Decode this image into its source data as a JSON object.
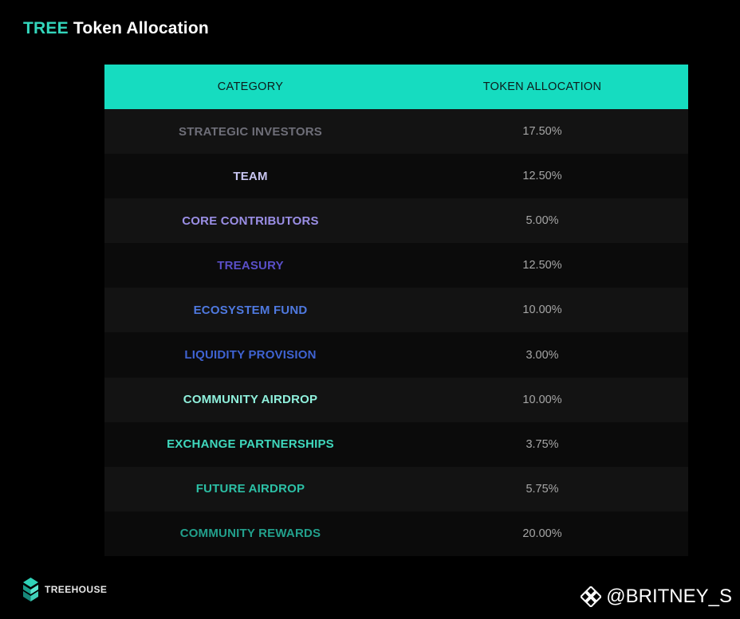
{
  "header": {
    "title_accent": "TREE",
    "title_rest": " Token Allocation"
  },
  "chart_data": {
    "type": "table",
    "columns": [
      "CATEGORY",
      "TOKEN ALLOCATION"
    ],
    "rows": [
      {
        "category": "STRATEGIC INVESTORS",
        "allocation": "17.50%",
        "color": "#6e6e78"
      },
      {
        "category": "TEAM",
        "allocation": "12.50%",
        "color": "#c9c6f2"
      },
      {
        "category": "CORE CONTRIBUTORS",
        "allocation": "5.00%",
        "color": "#9b8fe6"
      },
      {
        "category": "TREASURY",
        "allocation": "12.50%",
        "color": "#5a4fc8"
      },
      {
        "category": "ECOSYSTEM FUND",
        "allocation": "10.00%",
        "color": "#4f79e0"
      },
      {
        "category": "LIQUIDITY PROVISION",
        "allocation": "3.00%",
        "color": "#3f63d2"
      },
      {
        "category": "COMMUNITY AIRDROP",
        "allocation": "10.00%",
        "color": "#8ff0dc"
      },
      {
        "category": "EXCHANGE PARTNERSHIPS",
        "allocation": "3.75%",
        "color": "#3fd8bd"
      },
      {
        "category": "FUTURE AIRDROP",
        "allocation": "5.75%",
        "color": "#2cc0a6"
      },
      {
        "category": "COMMUNITY REWARDS",
        "allocation": "20.00%",
        "color": "#22a08c"
      }
    ]
  },
  "footer": {
    "brand": "TREEHOUSE",
    "logo_icon": "treehouse-logo-icon"
  },
  "watermark": {
    "text": "@BRITNEY_S",
    "icon": "binance-diamond-icon"
  },
  "colors": {
    "accent": "#33d6bc",
    "header_bg": "#16dcc0",
    "background": "#000000"
  }
}
